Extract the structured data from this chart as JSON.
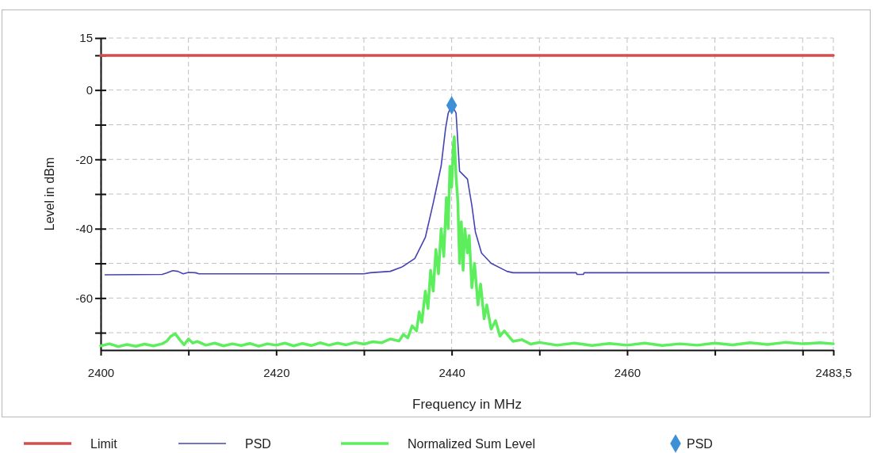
{
  "chart_data": {
    "type": "line",
    "xlabel": "Frequency in MHz",
    "ylabel": "Level in dBm",
    "xlim": [
      2400,
      2483.5
    ],
    "ylim": [
      -75,
      15
    ],
    "xticks": [
      2400,
      {
        "value": 2410,
        "label": null
      },
      2420,
      {
        "value": 2430,
        "label": null
      },
      2440,
      {
        "value": 2450,
        "label": null
      },
      2460,
      {
        "value": 2470,
        "label": null
      },
      {
        "value": 2480,
        "label": null
      },
      {
        "value": 2483.5,
        "label": "2483,5"
      }
    ],
    "yticks": [
      15,
      {
        "value": 10,
        "label": null
      },
      0,
      {
        "value": -10,
        "label": null
      },
      -20,
      {
        "value": -30,
        "label": null
      },
      -40,
      {
        "value": -50,
        "label": null
      },
      -60,
      {
        "value": -70,
        "label": null
      }
    ],
    "grid": true,
    "legend": "bottom",
    "marker": "none",
    "series": [
      {
        "name": "Limit",
        "color": "#d05050",
        "x": [
          2400,
          2483.5
        ],
        "values": [
          10,
          10
        ]
      },
      {
        "name": "PSD",
        "color": "#4444b4",
        "x": [
          2400.5,
          2407,
          2407.5,
          2408.2,
          2408.8,
          2409.4,
          2410,
          2410.8,
          2411.2,
          2430,
          2430.7,
          2433,
          2434.3,
          2435.8,
          2437,
          2437.9,
          2438.8,
          2439.3,
          2439.6,
          2440,
          2440.5,
          2440.9,
          2441.8,
          2442.3,
          2442.7,
          2443.4,
          2444.5,
          2446.3,
          2447,
          2454.2,
          2454.3,
          2455,
          2455.1,
          2483
        ],
        "values": [
          -53.3,
          -53.2,
          -52.8,
          -52.1,
          -52.3,
          -53,
          -52.6,
          -52.7,
          -53,
          -53,
          -52.7,
          -52.3,
          -51.1,
          -48.6,
          -42.5,
          -32.6,
          -21.9,
          -11.2,
          -6.7,
          -4.4,
          -6.6,
          -23.4,
          -25.7,
          -33.3,
          -40.9,
          -47,
          -50,
          -52.3,
          -52.7,
          -52.7,
          -53.2,
          -53.2,
          -52.7,
          -52.7
        ]
      },
      {
        "name": "Normalized Sum Level",
        "color": "#5cee5c",
        "x": [
          2400,
          2401,
          2402,
          2403,
          2404,
          2405,
          2406,
          2407,
          2407.5,
          2408,
          2408.5,
          2409,
          2409.5,
          2410,
          2410.5,
          2411,
          2412,
          2413,
          2414,
          2415,
          2416,
          2417,
          2418,
          2419,
          2420,
          2421,
          2422,
          2423,
          2424,
          2425,
          2426,
          2427,
          2428,
          2429,
          2430,
          2431,
          2432,
          2433,
          2434,
          2434.5,
          2435,
          2435.5,
          2436,
          2436.3,
          2436.6,
          2437,
          2437.3,
          2437.6,
          2437.9,
          2438.2,
          2438.5,
          2438.8,
          2439.1,
          2439.4,
          2439.6,
          2439.8,
          2440,
          2440.2,
          2440.3,
          2440.5,
          2440.7,
          2440.9,
          2441.1,
          2441.3,
          2441.5,
          2441.8,
          2442,
          2442.3,
          2442.6,
          2443,
          2443.3,
          2443.7,
          2444,
          2444.5,
          2445,
          2445.5,
          2446,
          2447,
          2448,
          2449,
          2450,
          2452,
          2454,
          2456,
          2458,
          2460,
          2462,
          2464,
          2466,
          2468,
          2470,
          2472,
          2474,
          2476,
          2478,
          2480,
          2482,
          2483.5
        ],
        "values": [
          -73.8,
          -73.2,
          -74,
          -73.4,
          -73.9,
          -73.3,
          -73.8,
          -73.2,
          -72.5,
          -71,
          -70.3,
          -72,
          -73.5,
          -71.8,
          -73,
          -72.5,
          -73.6,
          -73,
          -73.8,
          -73.2,
          -73.7,
          -73.1,
          -73.9,
          -73.2,
          -73.6,
          -73,
          -73.8,
          -73.1,
          -73.7,
          -72.9,
          -73.6,
          -73,
          -73.5,
          -72.8,
          -73.3,
          -72.6,
          -72.9,
          -71.8,
          -72.4,
          -70.5,
          -71.5,
          -68,
          -69.5,
          -64,
          -67,
          -58,
          -63,
          -52,
          -58,
          -46,
          -53,
          -40,
          -48,
          -31,
          -40,
          -22,
          -28,
          -15.5,
          -13.5,
          -25,
          -32,
          -50,
          -38,
          -52,
          -40,
          -47,
          -42,
          -57,
          -50,
          -62,
          -56,
          -66,
          -62,
          -69,
          -66.5,
          -71,
          -69.5,
          -72.5,
          -72,
          -73.3,
          -72.8,
          -73.6,
          -73,
          -73.7,
          -73.1,
          -73.6,
          -73,
          -73.7,
          -73.2,
          -73.6,
          -73,
          -73.5,
          -72.9,
          -73.4,
          -72.8,
          -73.2,
          -72.9,
          -73.2
        ]
      },
      {
        "name": "PSD",
        "type": "scatter",
        "marker": "diamond",
        "color": "#3d8fd6",
        "x": [
          2440
        ],
        "values": [
          -4.4
        ]
      }
    ]
  }
}
